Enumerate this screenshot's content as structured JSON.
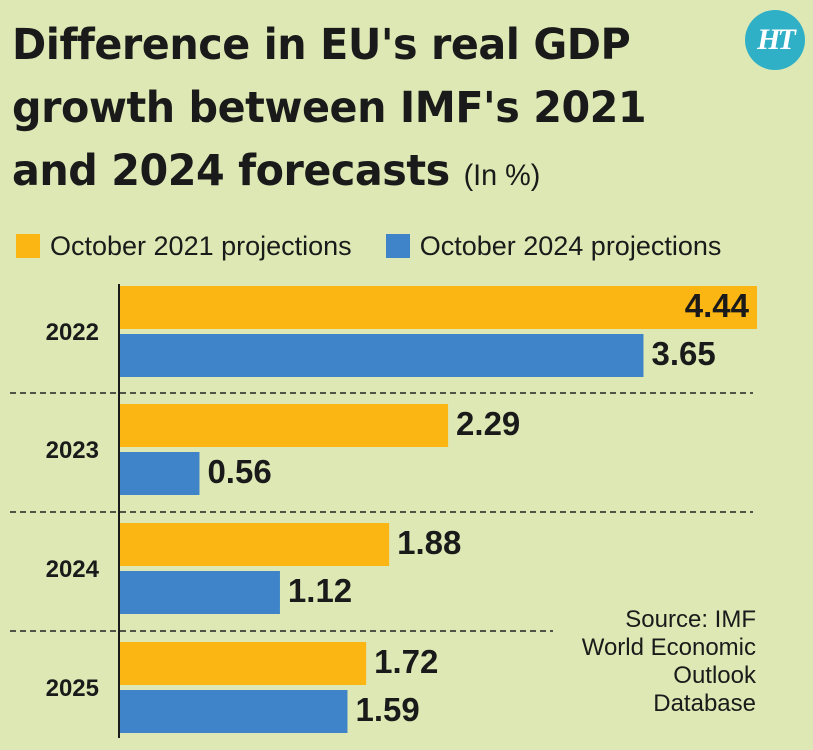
{
  "title": {
    "line1": "Difference in EU's real GDP",
    "line2": "growth between IMF's 2021",
    "line3": "and 2024 forecasts",
    "unit": "(In %)"
  },
  "logo": {
    "text": "HT",
    "color": "#30b0c7"
  },
  "legend": [
    {
      "label": "October 2021 projections",
      "color": "#fbb614"
    },
    {
      "label": "October 2024 projections",
      "color": "#3f84c8"
    }
  ],
  "source": [
    "Source: IMF",
    "World Economic",
    "Outlook",
    "Database"
  ],
  "chart_data": {
    "type": "bar",
    "orientation": "horizontal",
    "categories": [
      "2022",
      "2023",
      "2024",
      "2025"
    ],
    "series": [
      {
        "name": "October 2021 projections",
        "color": "#fbb614",
        "values": [
          4.44,
          2.29,
          1.88,
          1.72
        ]
      },
      {
        "name": "October 2024 projections",
        "color": "#3f84c8",
        "values": [
          3.65,
          0.56,
          1.12,
          1.59
        ]
      }
    ],
    "title": "Difference in EU's real GDP growth between IMF's 2021 and 2024 forecasts",
    "unit": "(In %)",
    "xlim": [
      0,
      4.44
    ],
    "grid": false,
    "legend_position": "top"
  }
}
